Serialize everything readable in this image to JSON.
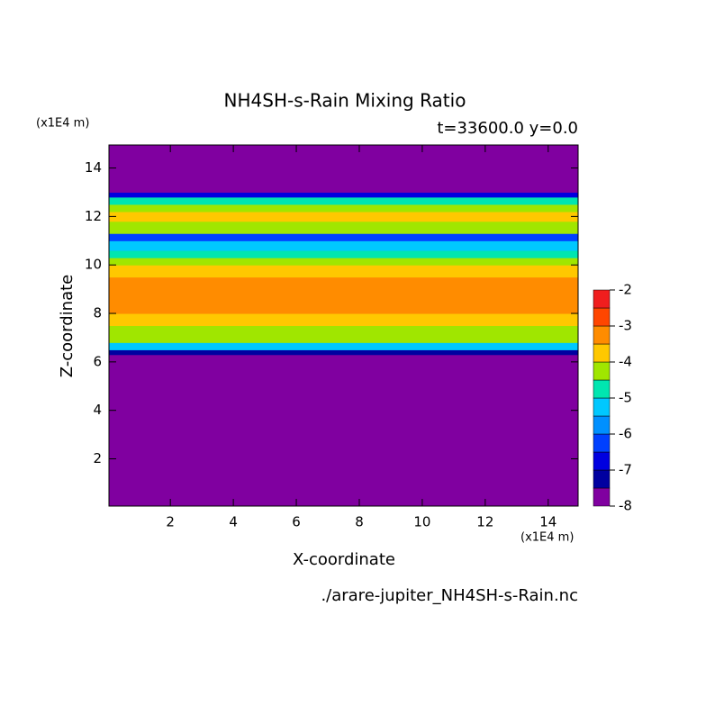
{
  "chart_data": {
    "type": "contour",
    "title": "NH4SH-s-Rain Mixing Ratio",
    "subtitle": "t=33600.0 y=0.0",
    "xlabel": "X-coordinate",
    "ylabel": "Z-coordinate",
    "x_unit": "(x1E4 m)",
    "y_unit": "(x1E4 m)",
    "file": "./arare-jupiter_NH4SH-s-Rain.nc",
    "xlim": [
      0.05,
      14.95
    ],
    "ylim": [
      0.05,
      14.95
    ],
    "xticks": [
      2,
      4,
      6,
      8,
      10,
      12,
      14
    ],
    "yticks": [
      2,
      4,
      6,
      8,
      10,
      12,
      14
    ],
    "z_edges": [
      0.05,
      6.3,
      6.5,
      6.8,
      7.5,
      8.0,
      9.5,
      10.0,
      10.3,
      10.6,
      11.0,
      11.3,
      11.8,
      12.2,
      12.5,
      12.8,
      13.0,
      14.95
    ],
    "values": [
      -8,
      -7.2,
      -5.2,
      -4.2,
      -3.7,
      -3.2,
      -3.7,
      -4.2,
      -4.7,
      -5.2,
      -6.2,
      -4.2,
      -3.7,
      -4.2,
      -4.7,
      -6.7,
      -8
    ],
    "levels": [
      -8,
      -7.5,
      -7,
      -6.5,
      -6,
      -5.5,
      -5,
      -4.5,
      -4,
      -3.5,
      -3,
      -2.5,
      -2
    ],
    "colors": [
      "#8000a0",
      "#0000a0",
      "#0000e0",
      "#0040ff",
      "#0090ff",
      "#00c8ff",
      "#00e6b0",
      "#a0e600",
      "#ffc800",
      "#ff8c00",
      "#ff4600",
      "#f01e1e",
      "#ffa0a0"
    ],
    "cbar_ticks": [
      -2,
      -3,
      -4,
      -5,
      -6,
      -7,
      -8
    ]
  }
}
